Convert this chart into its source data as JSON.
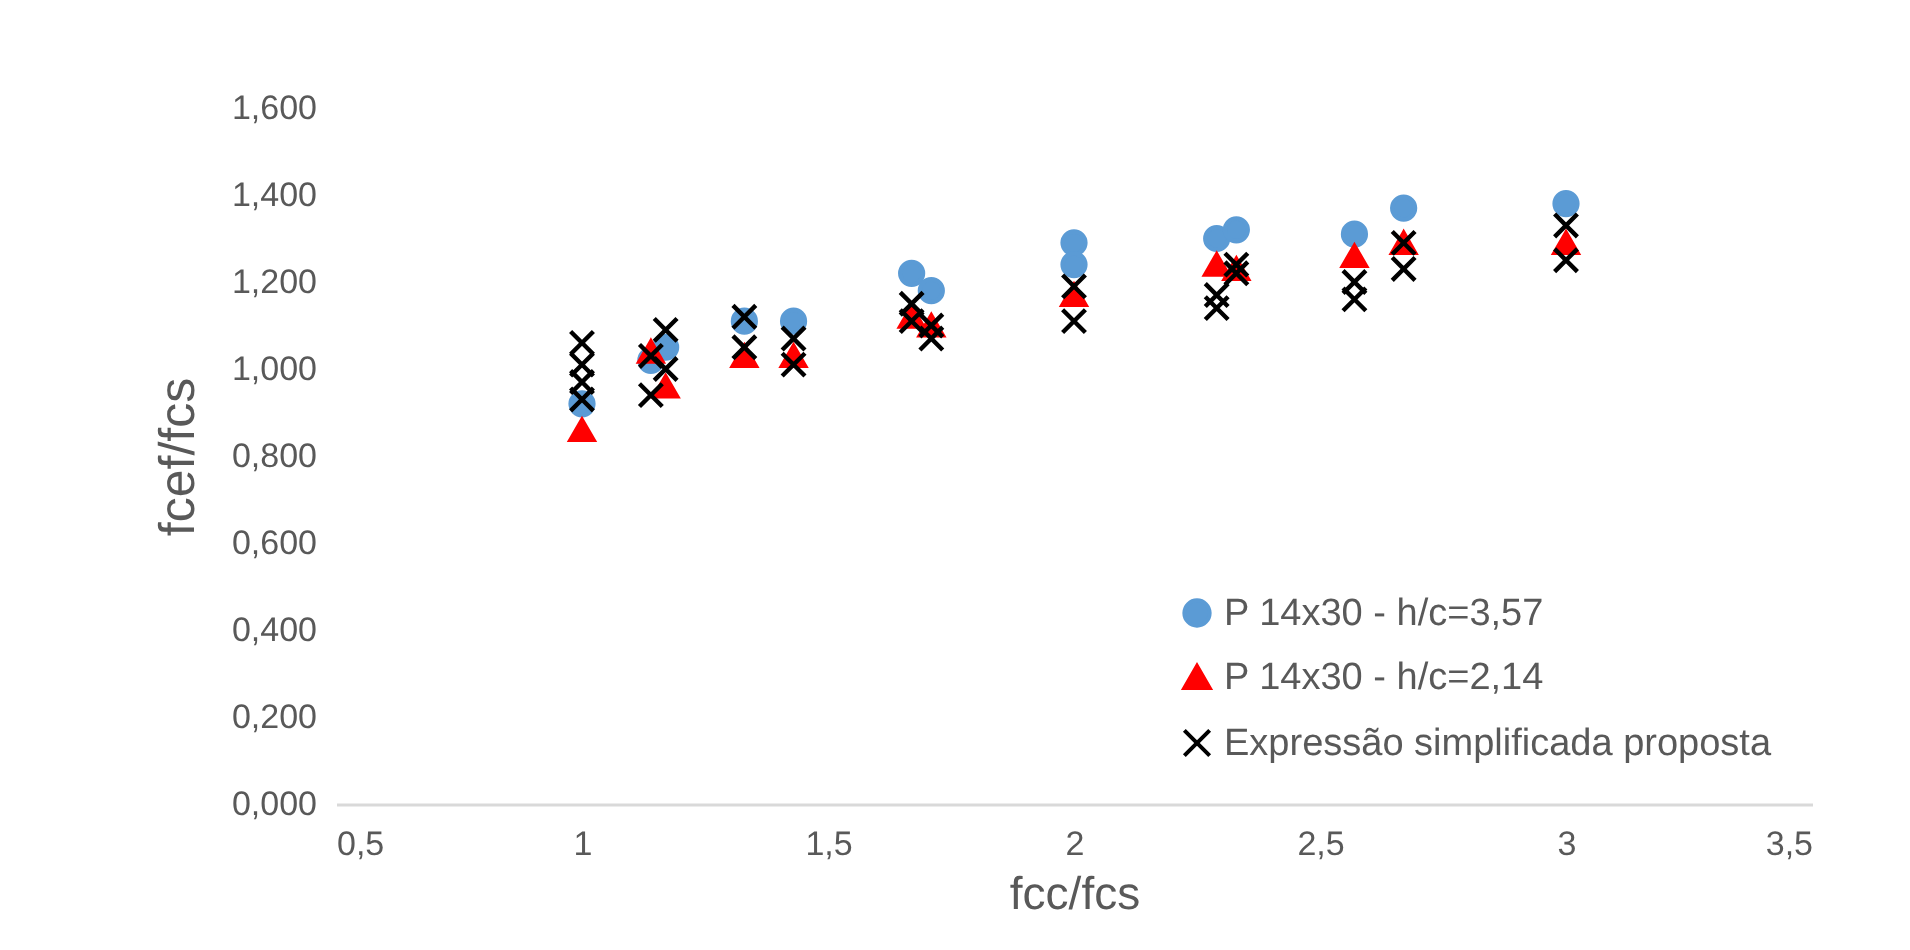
{
  "chart_data": {
    "type": "scatter",
    "xlabel": "fcc/fcs",
    "ylabel": "fcef/fcs",
    "xlim": [
      0.5,
      3.5
    ],
    "xticks": [
      {
        "value": 0.5,
        "label": "0,5"
      },
      1,
      {
        "value": 1.5,
        "label": "1,5"
      },
      2,
      {
        "value": 2.5,
        "label": "2,5"
      },
      3,
      {
        "value": 3.5,
        "label": "3,5"
      }
    ],
    "ylim": [
      0,
      1.6
    ],
    "yticks": [
      {
        "value": 0,
        "label": "0,000"
      },
      {
        "value": 0.2,
        "label": "0,200"
      },
      {
        "value": 0.4,
        "label": "0,400"
      },
      {
        "value": 0.6,
        "label": "0,600"
      },
      {
        "value": 0.8,
        "label": "0,800"
      },
      {
        "value": 1,
        "label": "1,000"
      },
      {
        "value": 1.2,
        "label": "1,200"
      },
      {
        "value": 1.4,
        "label": "1,400"
      },
      {
        "value": 1.6,
        "label": "1,600"
      }
    ],
    "grid": false,
    "legend": "bottom right",
    "series": [
      {
        "name": "P 14x30 - h/c=3,57",
        "color": "#5b9bd5",
        "marker": "circle",
        "x": [
          1,
          1.14,
          1.17,
          1.33,
          1.43,
          1.67,
          1.71,
          2,
          2,
          2.29,
          2.33,
          2.57,
          2.67,
          3
        ],
        "values": [
          0.92,
          1.02,
          1.05,
          1.11,
          1.11,
          1.22,
          1.18,
          1.29,
          1.24,
          1.3,
          1.32,
          1.31,
          1.37,
          1.38
        ]
      },
      {
        "name": "P 14x30 - h/c=2,14",
        "color": "#ff0000",
        "marker": "triangle",
        "x": [
          1,
          1.14,
          1.17,
          1.33,
          1.43,
          1.67,
          1.71,
          2,
          2.29,
          2.33,
          2.57,
          2.67,
          3
        ],
        "values": [
          0.86,
          1.04,
          0.96,
          1.03,
          1.03,
          1.12,
          1.1,
          1.17,
          1.24,
          1.23,
          1.26,
          1.29,
          1.29
        ]
      },
      {
        "name": "Expressão simplificada proposta",
        "color": "#000000",
        "marker": "cross",
        "x": [
          1,
          1,
          1,
          1,
          1.14,
          1.14,
          1.17,
          1.17,
          1.33,
          1.33,
          1.43,
          1.43,
          1.67,
          1.67,
          1.71,
          1.71,
          2,
          2,
          2.29,
          2.29,
          2.33,
          2.33,
          2.57,
          2.57,
          2.67,
          2.67,
          3,
          3
        ],
        "values": [
          1.06,
          1.01,
          0.97,
          0.93,
          1.03,
          0.94,
          1.09,
          1.0,
          1.12,
          1.05,
          1.07,
          1.01,
          1.15,
          1.11,
          1.07,
          1.1,
          1.19,
          1.11,
          1.17,
          1.14,
          1.24,
          1.22,
          1.2,
          1.16,
          1.29,
          1.23,
          1.33,
          1.25
        ]
      }
    ]
  }
}
